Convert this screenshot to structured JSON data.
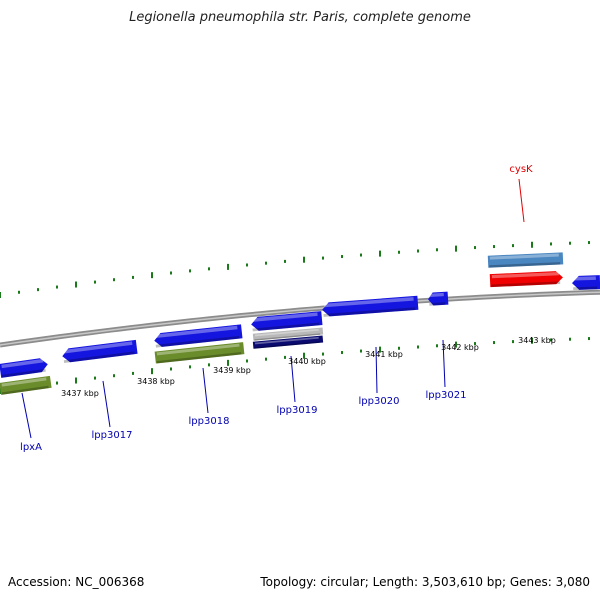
{
  "header": {
    "title": "Legionella pneumophila str. Paris, complete genome"
  },
  "footer": {
    "accession": "Accession: NC_006368",
    "summary": "Topology: circular; Length: 3,503,610 bp; Genes: 3,080"
  },
  "colors": {
    "backbone": "#8c8c8c",
    "tick": "#1a7a1a",
    "gene_blue": "#1515e0",
    "gene_green": "#6a8c2a",
    "gene_red": "#f00000",
    "gene_steel": "#4a86c0",
    "gene_grey": "#b8b8b8",
    "gene_navy": "#0a0a70",
    "label_blue": "#0000b0",
    "label_red": "#e00000"
  },
  "tick_labels": [
    "3437 kbp",
    "3438 kbp",
    "3439 kbp",
    "3440 kbp",
    "3441 kbp",
    "3442 kbp",
    "3443 kbp"
  ],
  "gene_labels": [
    {
      "text": "lpxA",
      "color": "blue"
    },
    {
      "text": "lpp3017",
      "color": "blue"
    },
    {
      "text": "lpp3018",
      "color": "blue"
    },
    {
      "text": "lpp3019",
      "color": "blue"
    },
    {
      "text": "lpp3020",
      "color": "blue"
    },
    {
      "text": "lpp3021",
      "color": "blue"
    },
    {
      "text": "cysK",
      "color": "red"
    }
  ]
}
